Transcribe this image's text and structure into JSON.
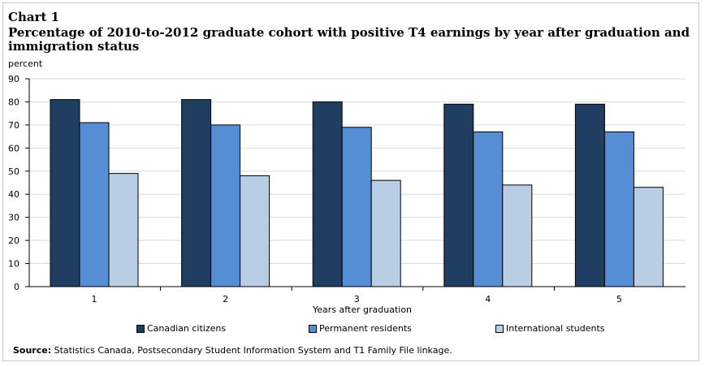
{
  "chart_number": "Chart 1",
  "title": "Percentage of 2010-to-2012 graduate cohort with positive T4 earnings by year after graduation and immigration status",
  "source_label": "Source:",
  "source_text": "Statistics Canada, Postsecondary Student Information System and T1 Family File linkage.",
  "colors": {
    "canadian": "#203e61",
    "permanent": "#558ed5",
    "international": "#b9cde5"
  },
  "chart_data": {
    "type": "bar",
    "title": "Percentage of 2010-to-2012 graduate cohort with positive T4 earnings by year after graduation and immigration status",
    "xlabel": "Years after graduation",
    "ylabel": "percent",
    "ylim": [
      0,
      90
    ],
    "yticks": [
      0,
      10,
      20,
      30,
      40,
      50,
      60,
      70,
      80,
      90
    ],
    "categories": [
      "1",
      "2",
      "3",
      "4",
      "5"
    ],
    "series": [
      {
        "name": "Canadian citizens",
        "values": [
          81,
          81,
          80,
          79,
          79
        ]
      },
      {
        "name": "Permanent residents",
        "values": [
          71,
          70,
          69,
          67,
          67
        ]
      },
      {
        "name": "International students",
        "values": [
          49,
          48,
          46,
          44,
          43
        ]
      }
    ],
    "grid": true,
    "legend": "bottom"
  }
}
